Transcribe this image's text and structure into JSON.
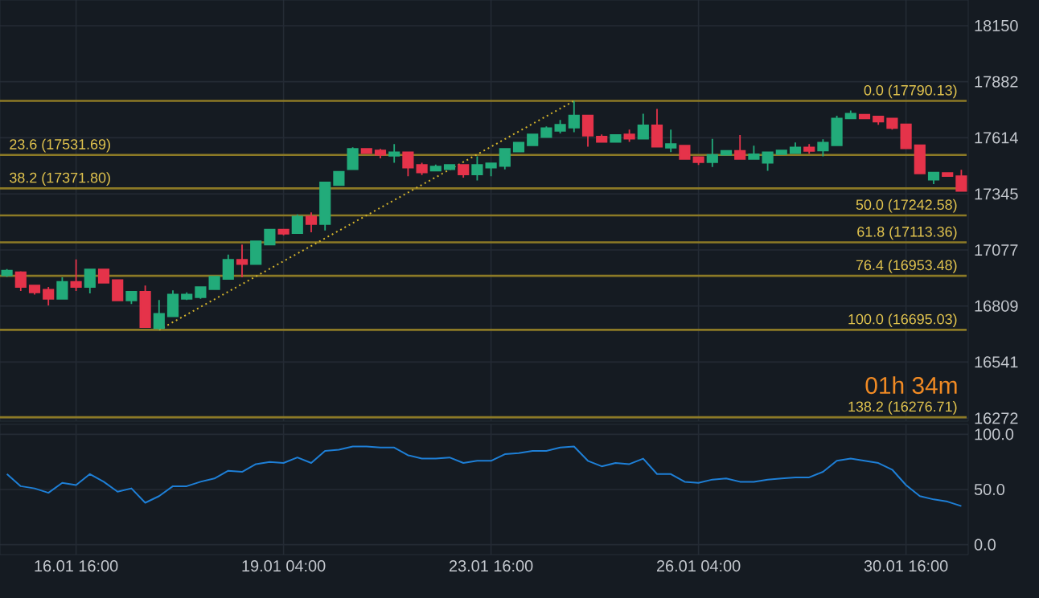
{
  "chart_data": [
    {
      "type": "candlestick",
      "tick_labels": "y",
      "grid": true,
      "categories": [
        null,
        null,
        null,
        null,
        null,
        null,
        null,
        null,
        null,
        null,
        null,
        null,
        null,
        null,
        null,
        null,
        null,
        null,
        null,
        null,
        null,
        null,
        null,
        null,
        null,
        null,
        null,
        null,
        null,
        null,
        null,
        null,
        null,
        null,
        null,
        null,
        null,
        null,
        null,
        null,
        null,
        null,
        null,
        null,
        null,
        null,
        null,
        null,
        null,
        null,
        null,
        null,
        null,
        null,
        null,
        null,
        null,
        null,
        null,
        null,
        null,
        null,
        null,
        null,
        null,
        null,
        null,
        null,
        null,
        null
      ],
      "ohlc": [
        [
          16956,
          16986,
          16948,
          16978
        ],
        [
          16971,
          16975,
          16881,
          16900
        ],
        [
          16907,
          16910,
          16864,
          16874
        ],
        [
          16887,
          16900,
          16812,
          16843
        ],
        [
          16843,
          16946,
          16840,
          16925
        ],
        [
          16925,
          17032,
          16881,
          16900
        ],
        [
          16900,
          16987,
          16869,
          16984
        ],
        [
          16984,
          16986,
          16917,
          16920
        ],
        [
          16933,
          16936,
          16832,
          16835
        ],
        [
          16835,
          16879,
          16818,
          16877
        ],
        [
          16877,
          16907,
          16705,
          16708
        ],
        [
          16703,
          16838,
          16695,
          16772
        ],
        [
          16759,
          16884,
          16756,
          16864
        ],
        [
          16843,
          16874,
          16838,
          16864
        ],
        [
          16851,
          16903,
          16843,
          16900
        ],
        [
          16889,
          16953,
          16886,
          16950
        ],
        [
          16938,
          17055,
          16935,
          17030
        ],
        [
          17030,
          17103,
          16946,
          17009
        ],
        [
          17009,
          17122,
          17006,
          17119
        ],
        [
          17103,
          17178,
          17100,
          17175
        ],
        [
          17175,
          17178,
          17147,
          17155
        ],
        [
          17157,
          17247,
          17154,
          17237
        ],
        [
          17237,
          17257,
          17162,
          17201
        ],
        [
          17201,
          17403,
          17170,
          17400
        ],
        [
          17387,
          17454,
          17384,
          17451
        ],
        [
          17463,
          17568,
          17460,
          17561
        ],
        [
          17561,
          17564,
          17537,
          17540
        ],
        [
          17553,
          17561,
          17515,
          17532
        ],
        [
          17528,
          17584,
          17494,
          17545
        ],
        [
          17545,
          17548,
          17430,
          17471
        ],
        [
          17484,
          17494,
          17436,
          17448
        ],
        [
          17456,
          17486,
          17453,
          17476
        ],
        [
          17463,
          17487,
          17460,
          17484
        ],
        [
          17484,
          17487,
          17423,
          17438
        ],
        [
          17438,
          17525,
          17410,
          17484
        ],
        [
          17471,
          17495,
          17430,
          17492
        ],
        [
          17479,
          17564,
          17463,
          17561
        ],
        [
          17548,
          17594,
          17545,
          17591
        ],
        [
          17578,
          17633,
          17575,
          17630
        ],
        [
          17617,
          17668,
          17614,
          17660
        ],
        [
          17647,
          17699,
          17635,
          17676
        ],
        [
          17662,
          17790,
          17640,
          17721
        ],
        [
          17721,
          17724,
          17571,
          17624
        ],
        [
          17620,
          17630,
          17591,
          17594
        ],
        [
          17594,
          17630,
          17591,
          17627
        ],
        [
          17630,
          17653,
          17594,
          17609
        ],
        [
          17609,
          17729,
          17606,
          17673
        ],
        [
          17673,
          17752,
          17568,
          17571
        ],
        [
          17566,
          17653,
          17545,
          17584
        ],
        [
          17576,
          17579,
          17509,
          17512
        ],
        [
          17522,
          17525,
          17484,
          17497
        ],
        [
          17497,
          17609,
          17474,
          17532
        ],
        [
          17532,
          17554,
          17529,
          17551
        ],
        [
          17551,
          17627,
          17509,
          17512
        ],
        [
          17512,
          17576,
          17509,
          17535
        ],
        [
          17494,
          17548,
          17456,
          17545
        ],
        [
          17535,
          17556,
          17532,
          17553
        ],
        [
          17540,
          17591,
          17537,
          17568
        ],
        [
          17568,
          17584,
          17538,
          17551
        ],
        [
          17553,
          17607,
          17525,
          17591
        ],
        [
          17578,
          17719,
          17575,
          17706
        ],
        [
          17706,
          17744,
          17703,
          17729
        ],
        [
          17724,
          17727,
          17703,
          17706
        ],
        [
          17716,
          17719,
          17676,
          17691
        ],
        [
          17706,
          17709,
          17653,
          17660
        ],
        [
          17678,
          17681,
          17560,
          17563
        ],
        [
          17578,
          17581,
          17440,
          17443
        ],
        [
          17413,
          17451,
          17392,
          17448
        ],
        [
          17446,
          17449,
          17427,
          17430
        ],
        [
          17430,
          17461,
          17356,
          17359
        ]
      ],
      "colors": [
        "#22ab7a",
        "#e5334a",
        "#e5334a",
        "#e5334a",
        "#22ab7a",
        "#e5334a",
        "#22ab7a",
        "#e5334a",
        "#e5334a",
        "#22ab7a",
        "#e5334a",
        "#22ab7a",
        "#22ab7a",
        "#22ab7a",
        "#22ab7a",
        "#22ab7a",
        "#22ab7a",
        "#e5334a",
        "#22ab7a",
        "#22ab7a",
        "#e5334a",
        "#22ab7a",
        "#e5334a",
        "#22ab7a",
        "#22ab7a",
        "#22ab7a",
        "#e5334a",
        "#e5334a",
        "#22ab7a",
        "#e5334a",
        "#e5334a",
        "#22ab7a",
        "#22ab7a",
        "#e5334a",
        "#22ab7a",
        "#22ab7a",
        "#22ab7a",
        "#22ab7a",
        "#22ab7a",
        "#22ab7a",
        "#22ab7a",
        "#22ab7a",
        "#e5334a",
        "#e5334a",
        "#22ab7a",
        "#e5334a",
        "#22ab7a",
        "#e5334a",
        "#22ab7a",
        "#e5334a",
        "#e5334a",
        "#22ab7a",
        "#22ab7a",
        "#e5334a",
        "#22ab7a",
        "#22ab7a",
        "#22ab7a",
        "#22ab7a",
        "#e5334a",
        "#22ab7a",
        "#22ab7a",
        "#22ab7a",
        "#e5334a",
        "#e5334a",
        "#e5334a",
        "#e5334a",
        "#e5334a",
        "#22ab7a",
        "#e5334a",
        "#e5334a"
      ],
      "series": [
        {
          "type": "line",
          "color": "#d6b52c",
          "line_style": "dotted",
          "values": [
            null,
            null,
            null,
            null,
            null,
            null,
            null,
            null,
            null,
            null,
            null,
            16695,
            null,
            null,
            null,
            null,
            null,
            null,
            null,
            null,
            null,
            null,
            null,
            null,
            null,
            null,
            null,
            null,
            null,
            null,
            null,
            null,
            null,
            null,
            null,
            null,
            null,
            null,
            null,
            null,
            null,
            17790,
            null,
            null,
            null,
            null,
            null,
            null,
            null,
            null,
            null,
            null,
            null,
            null,
            null,
            null,
            null,
            null,
            null,
            null,
            null,
            null,
            null,
            null,
            null,
            null,
            null,
            null,
            null,
            null
          ]
        }
      ],
      "ylim": [
        16258,
        18273
      ],
      "yticks": [
        18150,
        17882,
        17614,
        17345,
        17077,
        16809,
        16541,
        16272
      ],
      "ref_lines": [
        {
          "axis": "y",
          "value": 17790.13,
          "label": "0.0 (17790.13)",
          "color": "#8c7a26"
        },
        {
          "axis": "y",
          "value": 17531.69,
          "label": "23.6 (17531.69)",
          "color": "#8c7a26"
        },
        {
          "axis": "y",
          "value": 17371.8,
          "label": "38.2 (17371.80)",
          "color": "#8c7a26"
        },
        {
          "axis": "y",
          "value": 17242.58,
          "label": "50.0 (17242.58)",
          "color": "#8c7a26"
        },
        {
          "axis": "y",
          "value": 17113.36,
          "label": "61.8 (17113.36)",
          "color": "#8c7a26"
        },
        {
          "axis": "y",
          "value": 16953.48,
          "label": "76.4 (16953.48)",
          "color": "#8c7a26"
        },
        {
          "axis": "y",
          "value": 16695.03,
          "label": "100.0 (16695.03)",
          "color": "#8c7a26"
        },
        {
          "axis": "y",
          "value": 16276.71,
          "label": "138.2 (16276.71)",
          "color": "#8c7a26"
        }
      ],
      "annotations": [
        "01h 34m"
      ]
    },
    {
      "type": "line",
      "grid": true,
      "color": "#1e7fd6",
      "categories": [
        null,
        null,
        null,
        null,
        null,
        "16.01 16:00",
        null,
        null,
        null,
        null,
        null,
        null,
        null,
        null,
        null,
        null,
        null,
        null,
        null,
        null,
        "19.01 04:00",
        null,
        null,
        null,
        null,
        null,
        null,
        null,
        null,
        null,
        null,
        null,
        null,
        null,
        null,
        "23.01 16:00",
        null,
        null,
        null,
        null,
        null,
        null,
        null,
        null,
        null,
        null,
        null,
        null,
        null,
        null,
        "26.01 04:00",
        null,
        null,
        null,
        null,
        null,
        null,
        null,
        null,
        null,
        null,
        null,
        null,
        null,
        null,
        "30.01 16:00",
        null,
        null,
        null,
        null
      ],
      "values": [
        64,
        53,
        51,
        47,
        56,
        54,
        64,
        57,
        48,
        51,
        38,
        44,
        53,
        53,
        57,
        60,
        67,
        66,
        73,
        75,
        74,
        79,
        74,
        85,
        86,
        89,
        89,
        88,
        88,
        81,
        78,
        78,
        79,
        74,
        76,
        76,
        82,
        83,
        85,
        85,
        88,
        89,
        76,
        71,
        74,
        73,
        78,
        64,
        64,
        57,
        56,
        59,
        60,
        57,
        57,
        59,
        60,
        61,
        61,
        66,
        76,
        78,
        76,
        74,
        68,
        54,
        44,
        41,
        39,
        35
      ],
      "ylim": [
        -9,
        109
      ],
      "yticks": [
        {
          "value": 100,
          "label": "100.0"
        },
        {
          "value": 50,
          "label": "50.0"
        },
        {
          "value": 0,
          "label": "0.0"
        }
      ]
    }
  ]
}
